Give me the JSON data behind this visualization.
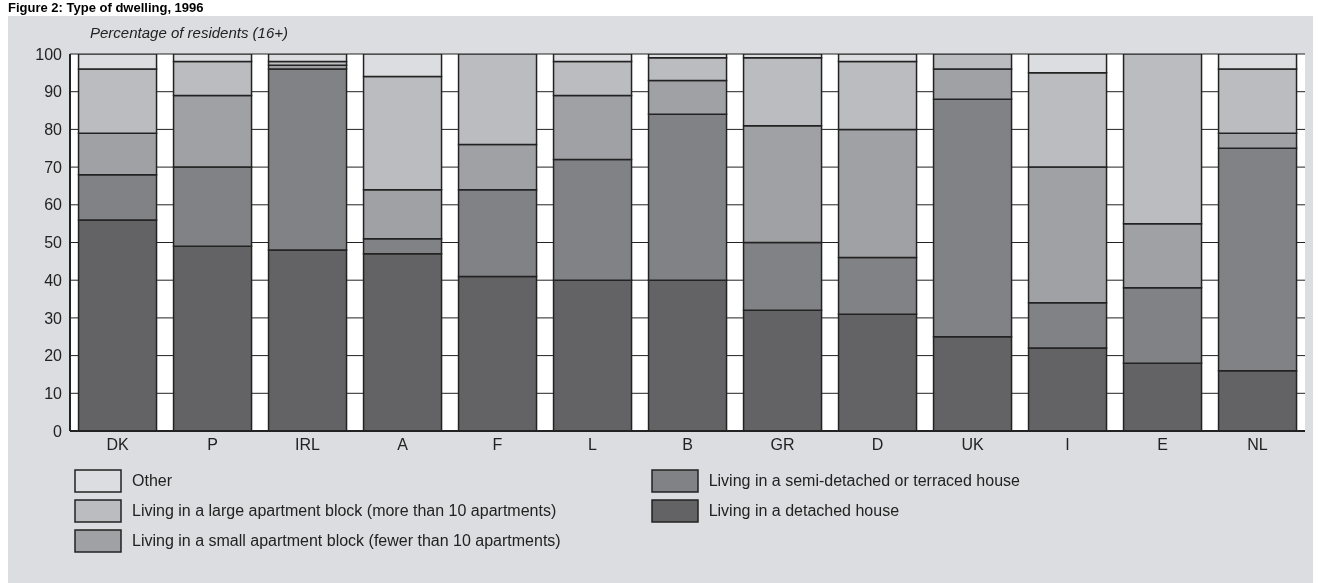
{
  "chart_data": {
    "type": "bar",
    "title": "Figure 2: Type of dwelling, 1996",
    "ylabel": "Percentage of residents (16+)",
    "categories": [
      "DK",
      "P",
      "IRL",
      "A",
      "F",
      "L",
      "B",
      "GR",
      "D",
      "UK",
      "I",
      "E",
      "NL"
    ],
    "stacked": true,
    "grid": "y",
    "legend": "bottom",
    "ylim": [
      0,
      100
    ],
    "yticks": [
      0,
      10,
      20,
      30,
      40,
      50,
      60,
      70,
      80,
      90,
      100
    ],
    "series": [
      {
        "name": "Living in a detached house",
        "color": "#636365",
        "values": [
          56,
          49,
          48,
          47,
          41,
          40,
          40,
          32,
          31,
          25,
          22,
          18,
          16
        ]
      },
      {
        "name": "Living in a semi-detached or terraced house",
        "color": "#818286",
        "values": [
          12,
          21,
          48,
          4,
          23,
          32,
          44,
          18,
          15,
          63,
          12,
          20,
          59
        ]
      },
      {
        "name": "Living in a small apartment block (fewer than 10 apartments)",
        "color": "#a0a1a5",
        "values": [
          11,
          19,
          1,
          13,
          12,
          17,
          9,
          31,
          34,
          8,
          36,
          17,
          4
        ]
      },
      {
        "name": "Living in a large apartment block (more than 10 apartments)",
        "color": "#bbbcc0",
        "values": [
          17,
          9,
          1,
          30,
          24,
          9,
          6,
          18,
          18,
          4,
          25,
          45,
          17
        ]
      },
      {
        "name": "Other",
        "color": "#dcdde0",
        "values": [
          4,
          2,
          2,
          6,
          0,
          2,
          1,
          1,
          2,
          0,
          5,
          0,
          4
        ]
      }
    ]
  }
}
